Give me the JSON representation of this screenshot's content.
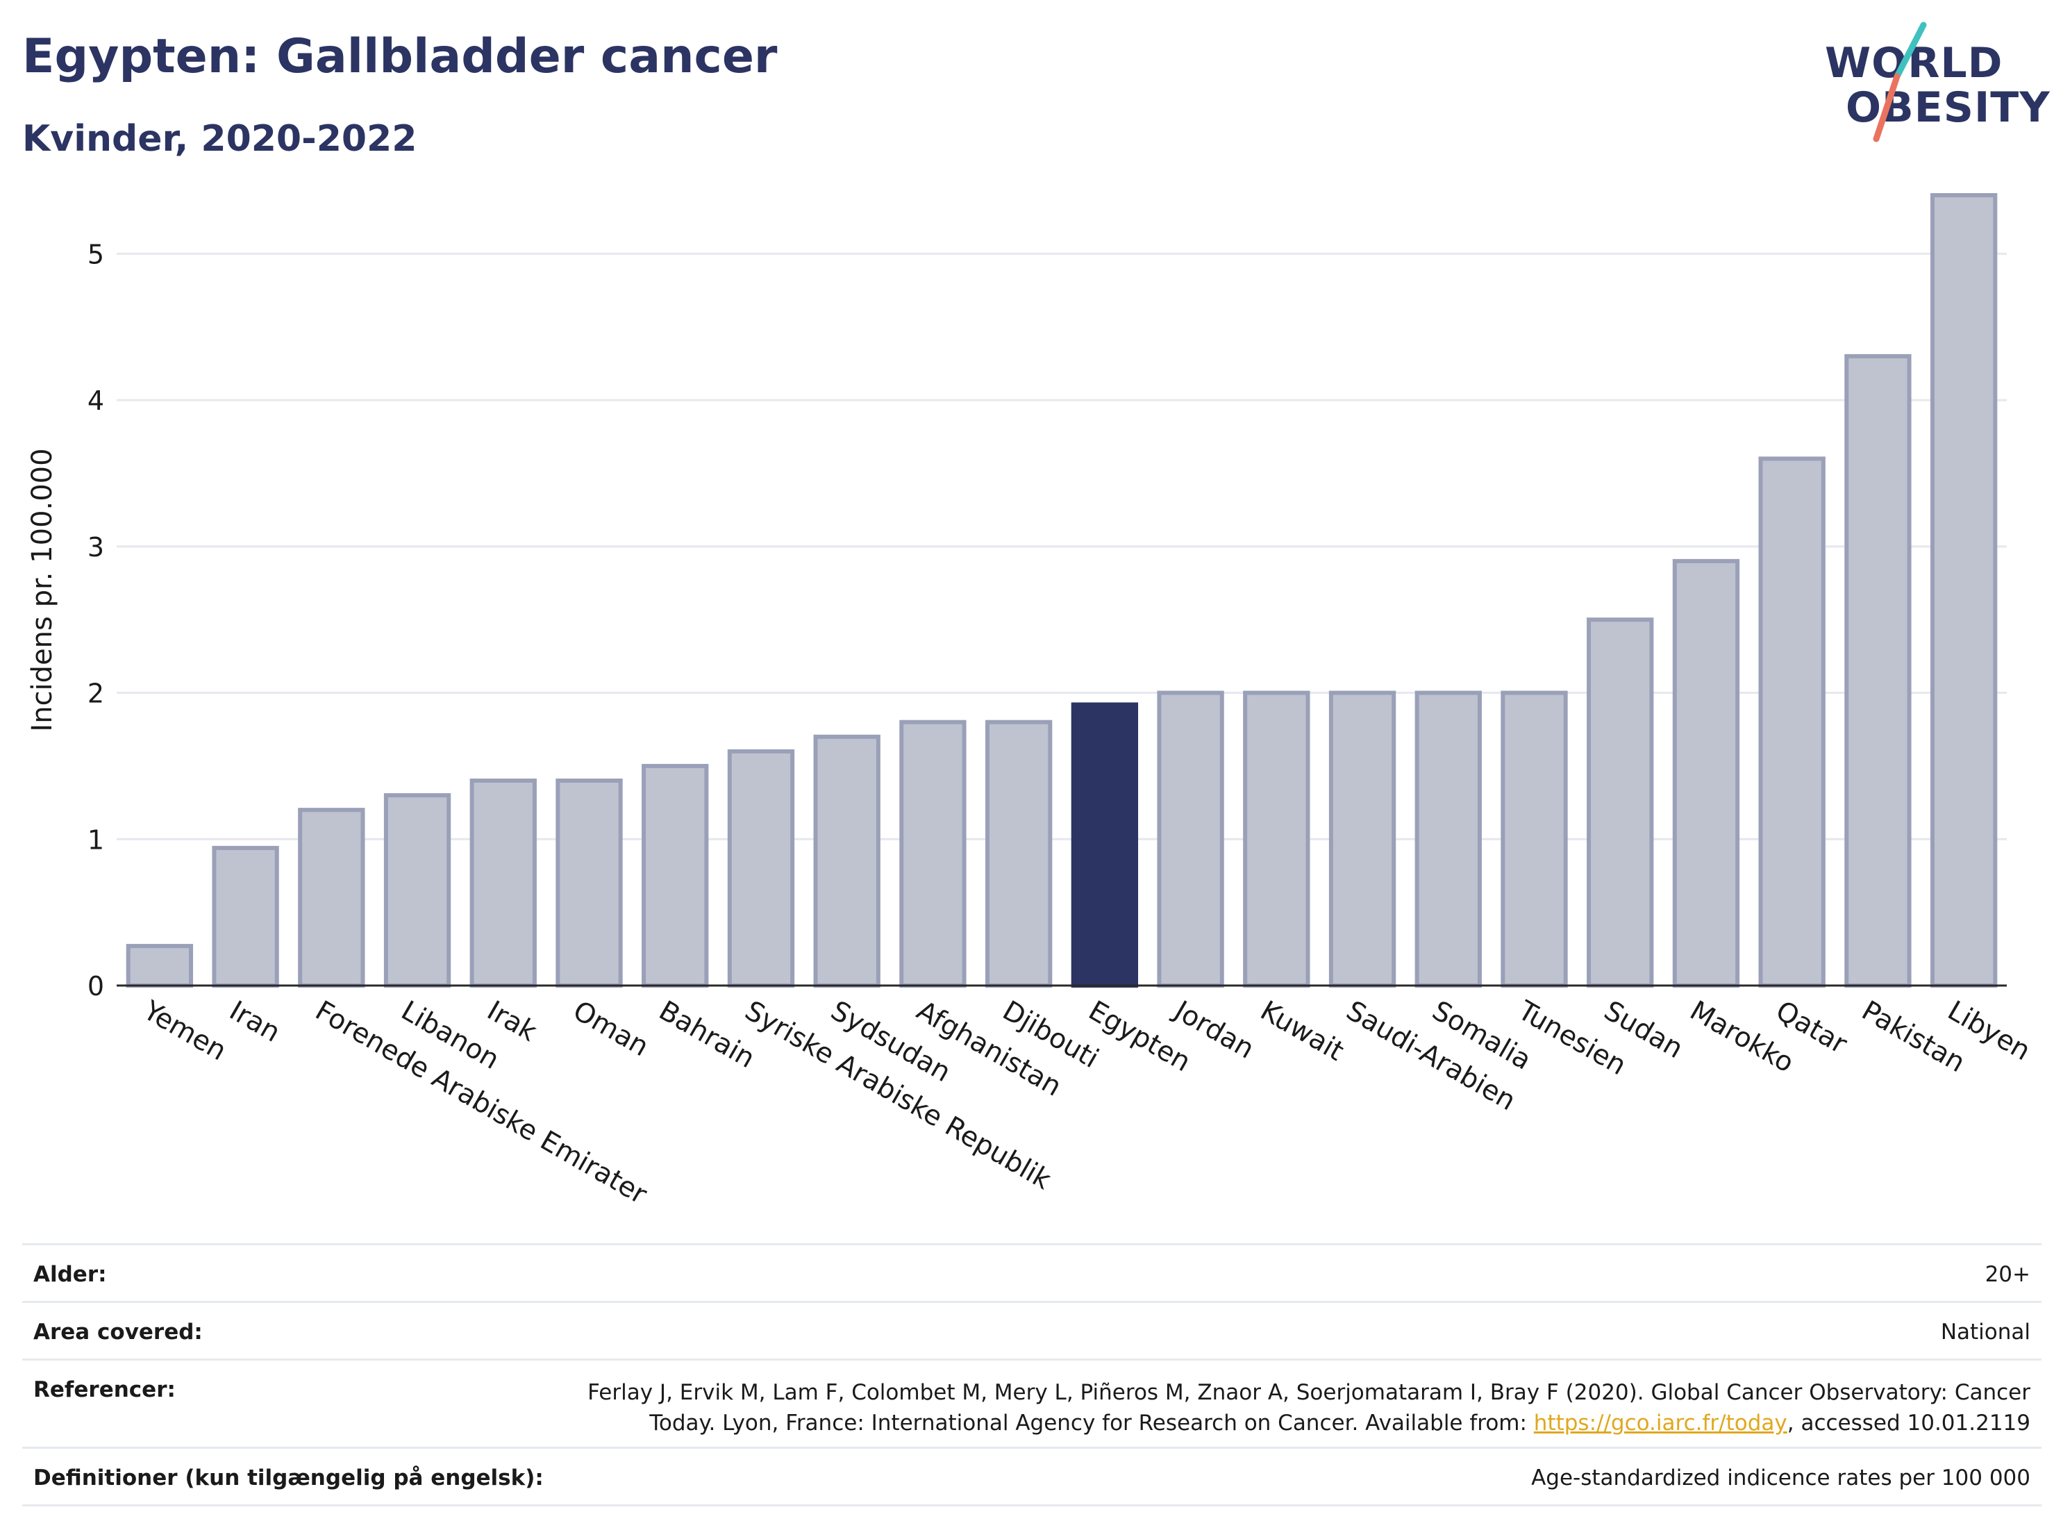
{
  "header": {
    "title": "Egypten: Gallbladder cancer",
    "subtitle": "Kvinder, 2020-2022"
  },
  "logo": {
    "line1": "WORLD",
    "line2": "OBESITY"
  },
  "colors": {
    "highlight": "#2b3462",
    "bar_fill": "#bfc3d0",
    "bar_stroke": "#9aa0b8",
    "grid": "#e6e8ee",
    "logo_teal": "#3fc1c0",
    "logo_coral": "#e9735f",
    "link": "#e0a81e"
  },
  "chart_data": {
    "type": "bar",
    "ylabel": "Incidens pr. 100.000",
    "xlabel": "",
    "ylim": [
      0,
      5.5
    ],
    "yticks": [
      0,
      1,
      2,
      3,
      4,
      5
    ],
    "grid": true,
    "highlight": "Egypten",
    "categories": [
      "Yemen",
      "Iran",
      "Forenede Arabiske Emirater",
      "Libanon",
      "Irak",
      "Oman",
      "Bahrain",
      "Syriske Arabiske Republik",
      "Sydsudan",
      "Afghanistan",
      "Djibouti",
      "Egypten",
      "Jordan",
      "Kuwait",
      "Saudi-Arabien",
      "Somalia",
      "Tunesien",
      "Sudan",
      "Marokko",
      "Qatar",
      "Pakistan",
      "Libyen"
    ],
    "values": [
      0.27,
      0.94,
      1.2,
      1.3,
      1.4,
      1.4,
      1.5,
      1.6,
      1.7,
      1.8,
      1.8,
      1.92,
      2.0,
      2.0,
      2.0,
      2.0,
      2.0,
      2.5,
      2.9,
      3.6,
      4.3,
      5.4
    ]
  },
  "table": {
    "age": {
      "label": "Alder:",
      "value": "20+"
    },
    "area": {
      "label": "Area covered:",
      "value": "National"
    },
    "refs": {
      "label": "Referencer:",
      "line1": "Ferlay J, Ervik M, Lam F, Colombet M, Mery L, Piñeros M, Znaor A, Soerjomataram I, Bray F (2020). Global Cancer Observatory: Cancer",
      "line2_pre": "Today. Lyon, France: International Agency for Research on Cancer. Available from: ",
      "link": "https://gco.iarc.fr/today",
      "line2_post": ", accessed 10.01.2119"
    },
    "defs": {
      "label": "Definitioner (kun tilgængelig på engelsk):",
      "value": "Age-standardized indicence rates per 100 000"
    }
  }
}
